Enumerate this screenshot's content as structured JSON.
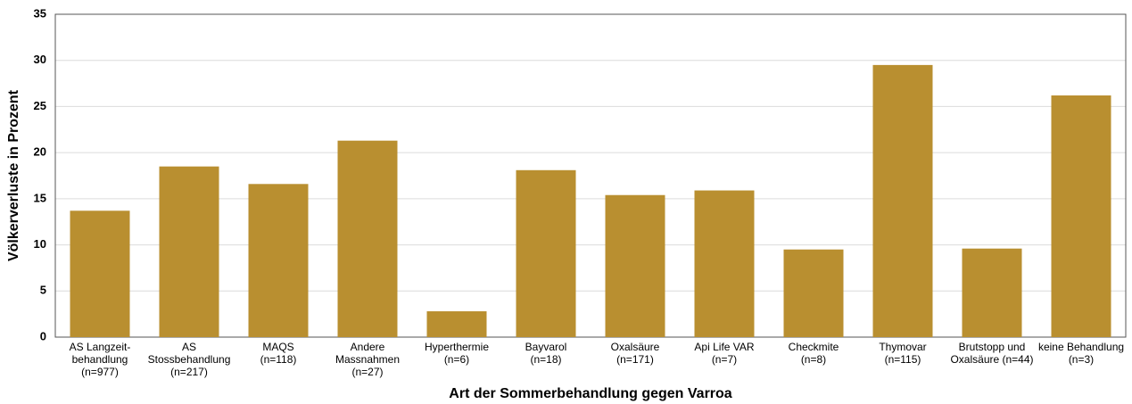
{
  "chart_data": {
    "type": "bar",
    "x_label": "Art der Sommerbehandlung gegen Varroa",
    "y_label": "Völkerverluste in Prozent",
    "categories": [
      [
        "AS Langzeit-",
        "behandlung",
        "(n=977)"
      ],
      [
        "AS",
        "Stossbehandlung",
        "(n=217)"
      ],
      [
        "MAQS",
        "(n=118)"
      ],
      [
        "Andere",
        "Massnahmen",
        "(n=27)"
      ],
      [
        "Hyperthermie",
        "(n=6)"
      ],
      [
        "Bayvarol",
        "(n=18)"
      ],
      [
        "Oxalsäure",
        "(n=171)"
      ],
      [
        "Api Life VAR",
        "(n=7)"
      ],
      [
        "Checkmite",
        "(n=8)"
      ],
      [
        "Thymovar",
        "(n=115)"
      ],
      [
        "Brutstopp und",
        "Oxalsäure (n=44)"
      ],
      [
        "keine  Behandlung",
        "(n=3)"
      ]
    ],
    "values": [
      13.7,
      18.5,
      16.6,
      21.3,
      2.8,
      18.1,
      15.4,
      15.9,
      9.5,
      29.5,
      9.6,
      26.2
    ],
    "color": "#b98f30",
    "ylim": [
      0,
      35
    ],
    "yticks": [
      0,
      5,
      10,
      15,
      20,
      25,
      30,
      35
    ],
    "grid": true
  }
}
